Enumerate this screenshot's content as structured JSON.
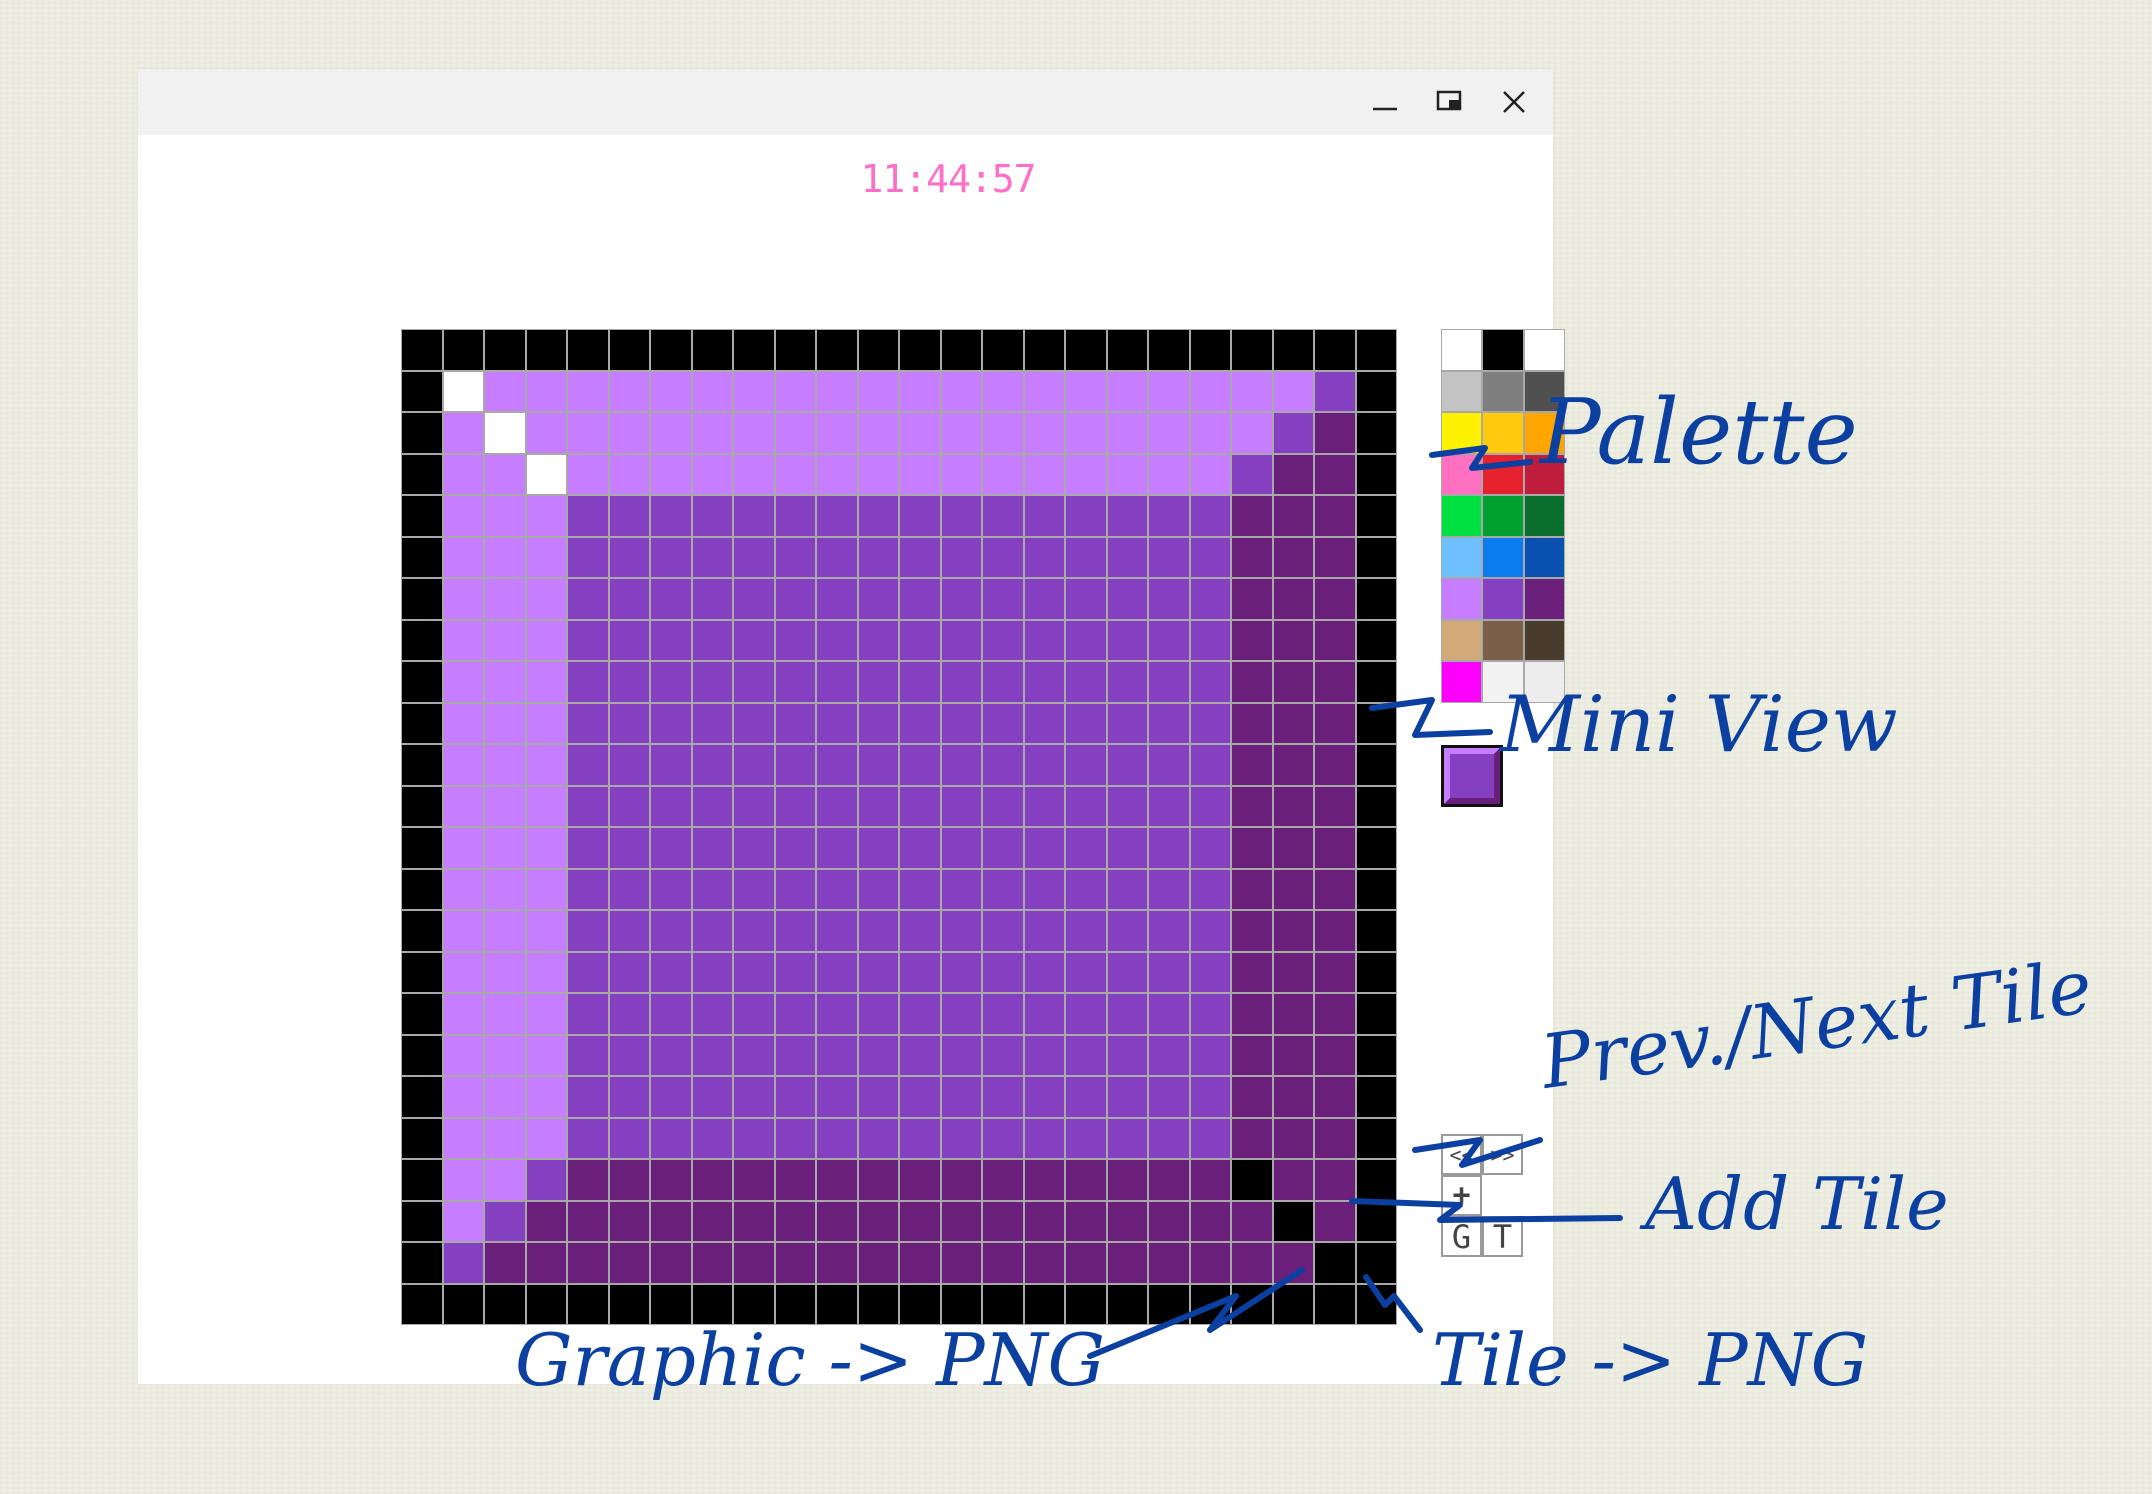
{
  "window": {
    "clock": "11:44:57",
    "clock_color": "#ff6ec7",
    "controls": [
      "minimize-icon",
      "restore-icon",
      "close-icon"
    ]
  },
  "canvas": {
    "cols": 24,
    "rows": 24,
    "colors": {
      "K": "#000000",
      "W": "#ffffff",
      "L": "#c77dff",
      "M": "#8440c0",
      "D": "#6a1f7a"
    },
    "pixels": [
      "KKKKKKKKKKKKKKKKKKKKKKKK",
      "KWLLLLLLLLLLLLLLLLLLLLMK",
      "KLWLLLLLLLLLLLLLLLLLLMDK",
      "KLLWLLLLLLLLLLLLLLLLMDDK",
      "KLLLMMMMMMMMMMMMMMMMDDDK",
      "KLLLMMMMMMMMMMMMMMMMDDDK",
      "KLLLMMMMMMMMMMMMMMMMDDDK",
      "KLLLMMMMMMMMMMMMMMMMDDDK",
      "KLLLMMMMMMMMMMMMMMMMDDDK",
      "KLLLMMMMMMMMMMMMMMMMDDDK",
      "KLLLMMMMMMMMMMMMMMMMDDDK",
      "KLLLMMMMMMMMMMMMMMMMDDDK",
      "KLLLMMMMMMMMMMMMMMMMDDDK",
      "KLLLMMMMMMMMMMMMMMMMDDDK",
      "KLLLMMMMMMMMMMMMMMMMDDDK",
      "KLLLMMMMMMMMMMMMMMMMDDDK",
      "KLLLMMMMMMMMMMMMMMMMDDDK",
      "KLLLMMMMMMMMMMMMMMMMDDDK",
      "KLLLMMMMMMMMMMMMMMMMDDDK",
      "KLLLMMMMMMMMMMMMMMMMDDDK",
      "KLLMDDDDDDDDDDDDDDDDKDDK",
      "KLMDDDDDDDDDDDDDDDDDDKDK",
      "KMDDDDDDDDDDDDDDDDDDDDKK",
      "KKKKKKKKKKKKKKKKKKKKKKKK"
    ]
  },
  "palette": {
    "colors": [
      "#ffffff",
      "#000000",
      "#ffffff",
      "#c3c3c3",
      "#7f7f7f",
      "#505050",
      "#fff200",
      "#ffc90e",
      "#ffa500",
      "#ff70c0",
      "#e6222e",
      "#be1e3c",
      "#00e040",
      "#00a030",
      "#0a6e2e",
      "#6ec0ff",
      "#0a7cf0",
      "#0a50b0",
      "#c77dff",
      "#8440c0",
      "#6a1f7a",
      "#d2aa78",
      "#7a6048",
      "#4a3c2c",
      "#ff00ff",
      "#f2f2f2",
      "#ededed"
    ]
  },
  "toolbar": {
    "prev_label": "<<",
    "next_label": ">>",
    "add_label": "+",
    "graphic_label": "G",
    "tile_label": "T"
  },
  "annotations": {
    "palette": "Palette",
    "mini_view": "Mini View",
    "prev_next": "Prev./Next Tile",
    "add_tile": "Add Tile",
    "graphic_png": "Graphic -> PNG",
    "tile_png": "Tile -> PNG",
    "ink_color": "#0b3fa0"
  }
}
